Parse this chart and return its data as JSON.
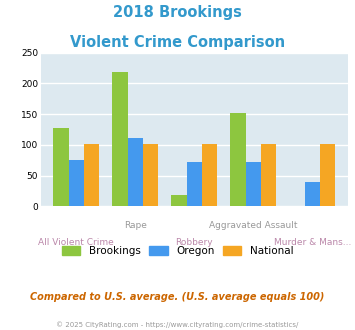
{
  "title_line1": "2018 Brookings",
  "title_line2": "Violent Crime Comparison",
  "title_color": "#3399cc",
  "brookings": [
    128,
    218,
    18,
    152,
    0
  ],
  "oregon": [
    75,
    112,
    72,
    72,
    40
  ],
  "national": [
    101,
    101,
    101,
    101,
    101
  ],
  "bar_colors": {
    "brookings": "#8dc63f",
    "oregon": "#4499ee",
    "national": "#f5a623"
  },
  "ylim": [
    0,
    250
  ],
  "yticks": [
    0,
    50,
    100,
    150,
    200,
    250
  ],
  "plot_bg": "#dde9f0",
  "grid_color": "#ffffff",
  "top_label_color": "#999999",
  "bot_label_color": "#bb88aa",
  "top_labels": [
    "",
    "Rape",
    "",
    "Aggravated Assault",
    ""
  ],
  "bot_labels": [
    "All Violent Crime",
    "",
    "Robbery",
    "",
    "Murder & Mans..."
  ],
  "legend_labels": [
    "Brookings",
    "Oregon",
    "National"
  ],
  "footer_text": "Compared to U.S. average. (U.S. average equals 100)",
  "footer_color": "#cc6600",
  "credit_text": "© 2025 CityRating.com - https://www.cityrating.com/crime-statistics/",
  "credit_color": "#999999"
}
